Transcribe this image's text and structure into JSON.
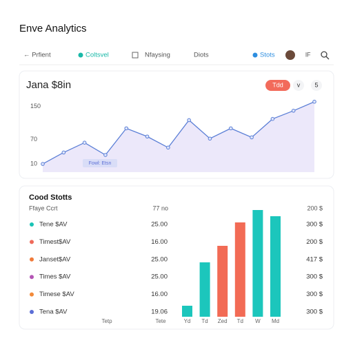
{
  "header": {
    "title": "Enve Analytics"
  },
  "nav": {
    "items": [
      "← Prfient",
      "Coltsvel",
      "Nfaysing",
      "Diots",
      "Stots"
    ],
    "active": 1,
    "extra": "lF"
  },
  "line_card": {
    "title": "Jana $8in",
    "buttons": [
      "Tdd",
      "v",
      "5"
    ],
    "tooltip": "Fowl: Etsn",
    "ylim": [
      -10,
      175
    ],
    "yticks": [
      10,
      70,
      150
    ],
    "values": [
      10,
      38,
      62,
      32,
      97,
      77,
      50,
      117,
      72,
      97,
      75,
      120,
      140,
      162
    ],
    "color": "#5b7fd6"
  },
  "stats_card": {
    "title": "Cood Stotts",
    "header": [
      "Ffaye Ccrt",
      "77 no",
      "200 $"
    ],
    "rows": [
      {
        "name": "Tene $AV",
        "color": "#19c3b5",
        "value": "25.00",
        "amount": "300 $"
      },
      {
        "name": "Timest$AV",
        "color": "#ef6a5a",
        "value": "16.00",
        "amount": "200 $"
      },
      {
        "name": "Janset$AV",
        "color": "#f07a3a",
        "value": "25.00",
        "amount": "417 $"
      },
      {
        "name": "Times $AV",
        "color": "#b455b5",
        "value": "25.00",
        "amount": "300 $"
      },
      {
        "name": "Timese $AV",
        "color": "#f28a3a",
        "value": "16.00",
        "amount": "300 $"
      },
      {
        "name": "Tena $AV",
        "color": "#5b6ed6",
        "value": "19.06",
        "amount": "300 $"
      }
    ],
    "footer": [
      "Tetp",
      "Tete"
    ],
    "bars": {
      "categories": [
        "Yd",
        "Td",
        "Zed",
        "Td",
        "W",
        "Md"
      ],
      "values": [
        16,
        79,
        103,
        137,
        155,
        146
      ],
      "colors": [
        "#1cc6bc",
        "#1cc6bc",
        "#f26b55",
        "#f26b55",
        "#1cc6bc",
        "#1cc6bc"
      ],
      "ylim": [
        0,
        160
      ]
    }
  }
}
